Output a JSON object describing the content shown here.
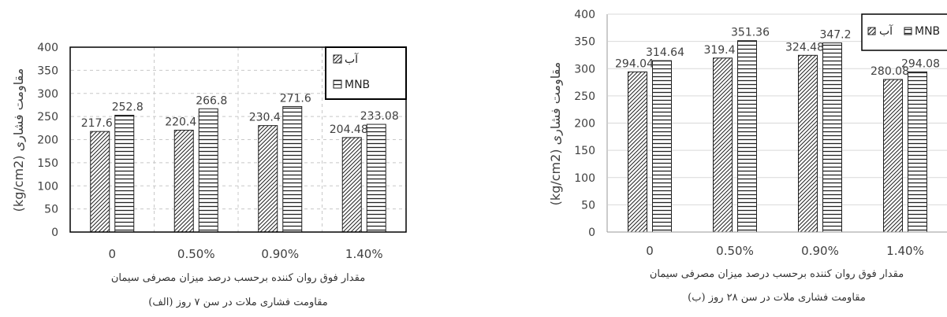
{
  "chart_data": [
    {
      "type": "bar",
      "categories": [
        "0",
        "0.50%",
        "0.90%",
        "1.40%"
      ],
      "series": [
        {
          "name": "آب",
          "values": [
            217.6,
            220.4,
            230.4,
            204.48
          ],
          "labels": [
            "217.6",
            "220.4",
            "230.4",
            "204.48"
          ],
          "pattern": "diagonal"
        },
        {
          "name": "MNB",
          "values": [
            252.8,
            266.8,
            271.6,
            233.08
          ],
          "labels": [
            "252.8",
            "266.8",
            "271.6",
            "233.08"
          ],
          "pattern": "horizontal"
        }
      ],
      "ylabel": "(kg/cm2) مقاومت فشاری",
      "xlabel": "مقدار فوق روان کننده برحسب درصد میزان مصرفی سیمان",
      "caption": "(الف) مقاومت فشاری ملات در سن ۷ روز",
      "ylim": [
        0,
        400
      ],
      "yticks": [
        "0",
        "50",
        "100",
        "150",
        "200",
        "250",
        "300",
        "350",
        "400"
      ],
      "grid": "dashed",
      "legend_position": "top-right"
    },
    {
      "type": "bar",
      "categories": [
        "0",
        "0.50%",
        "0.90%",
        "1.40%"
      ],
      "series": [
        {
          "name": "آب",
          "values": [
            294.04,
            319.4,
            324.48,
            280.08
          ],
          "labels": [
            "294.04",
            "319.4",
            "324.48",
            "280.08"
          ],
          "pattern": "diagonal"
        },
        {
          "name": "MNB",
          "values": [
            314.64,
            351.36,
            347.2,
            294.08
          ],
          "labels": [
            "314.64",
            "351.36",
            "347.2",
            "294.08"
          ],
          "pattern": "horizontal"
        }
      ],
      "ylabel": "(kg/cm2) مقاومت فشاری",
      "xlabel": "مقدار فوق روان کننده برحسب درصد میزان مصرفی سیمان",
      "caption": "(ب) مقاومت فشاری ملات در سن ۲۸ روز",
      "ylim": [
        0,
        400
      ],
      "yticks": [
        "0",
        "50",
        "100",
        "150",
        "200",
        "250",
        "300",
        "350",
        "400"
      ],
      "grid": "solid",
      "legend_position": "top-right"
    }
  ]
}
